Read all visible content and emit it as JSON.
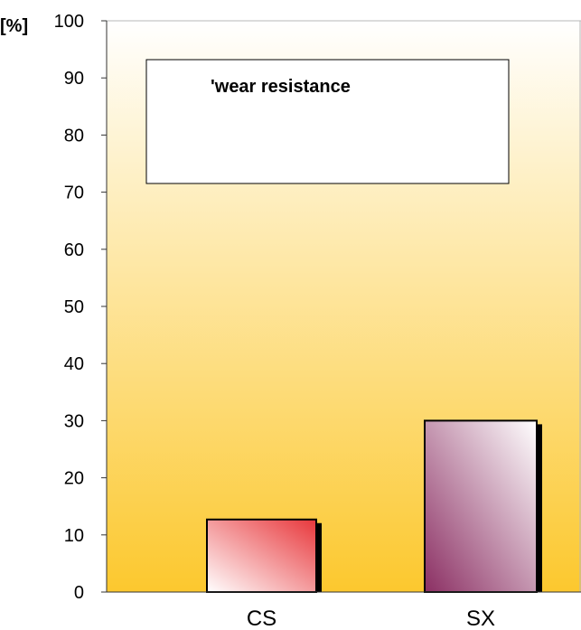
{
  "chart_data": {
    "type": "bar",
    "title": "",
    "xlabel": "",
    "ylabel": "[%]",
    "ylim": [
      0,
      100
    ],
    "y_ticks": [
      0,
      10,
      20,
      30,
      40,
      50,
      60,
      70,
      80,
      90,
      100
    ],
    "categories": [
      "CS",
      "SX"
    ],
    "values": [
      12.7,
      30.0
    ],
    "grid": false,
    "legend": {
      "placement": "top-left",
      "entries": [
        "'wear resistance"
      ]
    },
    "colors": {
      "plot_background_top": "#ffffff",
      "plot_background_bottom": "#fcc82e",
      "cs_bar_start": "#ffffff",
      "cs_bar_end": "#e8373b",
      "sx_bar_start": "#ffffff",
      "sx_bar_end": "#8b2f63",
      "shadow": "#000000",
      "axis": "#333333",
      "text": "#000000"
    }
  }
}
